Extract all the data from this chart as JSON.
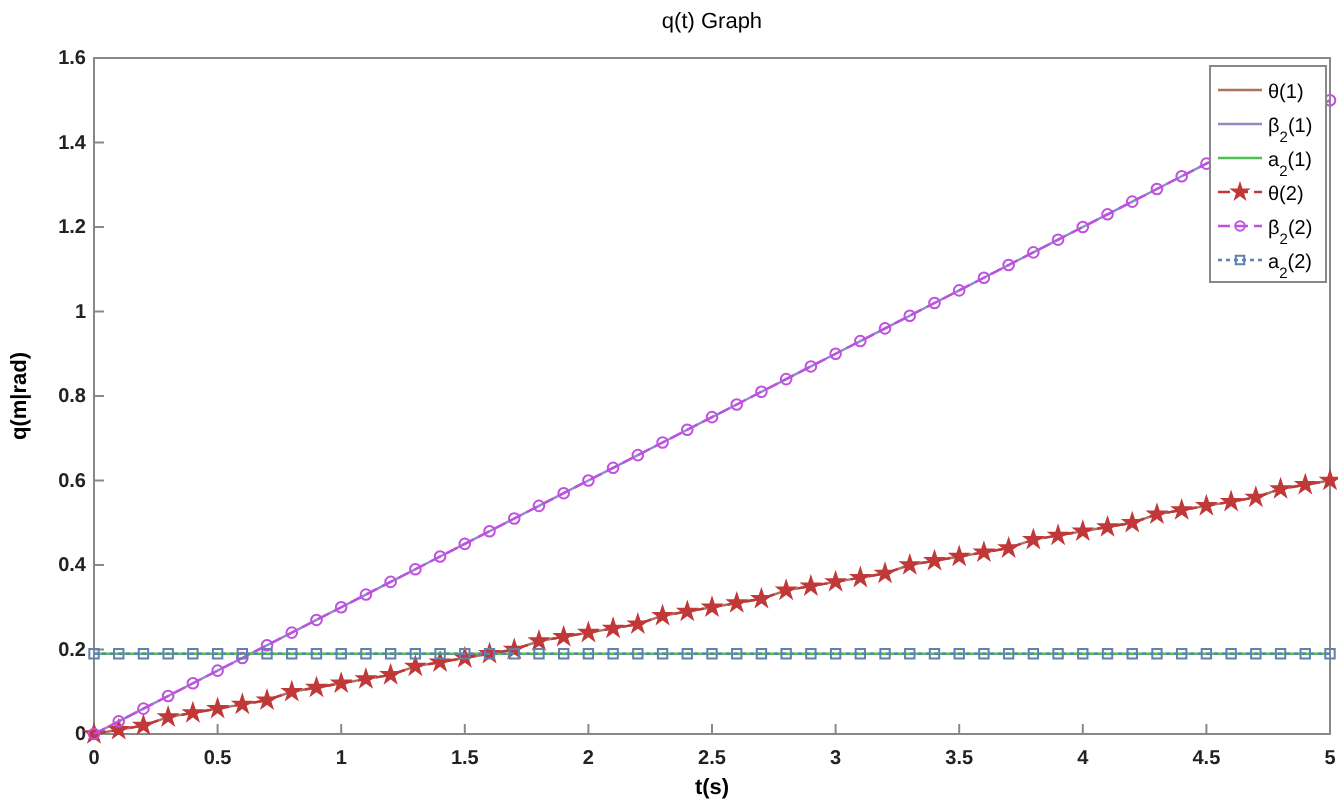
{
  "chart_data": {
    "type": "line",
    "title": "q(t) Graph",
    "xlabel": "t(s)",
    "ylabel": "q(m|rad)",
    "x": [
      0,
      0.1,
      0.2,
      0.3,
      0.4,
      0.5,
      0.6,
      0.7,
      0.8,
      0.9,
      1,
      1.1,
      1.2,
      1.3,
      1.4,
      1.5,
      1.6,
      1.7,
      1.8,
      1.9,
      2,
      2.1,
      2.2,
      2.3,
      2.4,
      2.5,
      2.6,
      2.7,
      2.8,
      2.9,
      3,
      3.1,
      3.2,
      3.3,
      3.4,
      3.5,
      3.6,
      3.7,
      3.8,
      3.9,
      4,
      4.1,
      4.2,
      4.3,
      4.4,
      4.5,
      4.6,
      4.7,
      4.8,
      4.9,
      5
    ],
    "xlim": [
      0,
      5
    ],
    "xticks": [
      0,
      0.5,
      1,
      1.5,
      2,
      2.5,
      3,
      3.5,
      4,
      4.5,
      5
    ],
    "ylim": [
      0,
      1.6
    ],
    "yticks": [
      0,
      0.2,
      0.4,
      0.6,
      0.8,
      1,
      1.2,
      1.4,
      1.6
    ],
    "grid": false,
    "legend": "top right",
    "series": [
      {
        "name": "θ(1)",
        "color": "#b07060",
        "line_style": "solid",
        "marker": "none",
        "values": [
          0,
          0.01,
          0.02,
          0.04,
          0.05,
          0.06,
          0.07,
          0.08,
          0.1,
          0.11,
          0.12,
          0.13,
          0.14,
          0.16,
          0.17,
          0.18,
          0.19,
          0.2,
          0.22,
          0.23,
          0.24,
          0.25,
          0.26,
          0.28,
          0.29,
          0.3,
          0.31,
          0.32,
          0.34,
          0.35,
          0.36,
          0.37,
          0.38,
          0.4,
          0.41,
          0.42,
          0.43,
          0.44,
          0.46,
          0.47,
          0.48,
          0.49,
          0.5,
          0.52,
          0.53,
          0.54,
          0.55,
          0.56,
          0.58,
          0.59,
          0.6
        ]
      },
      {
        "name": "β$_{2}$(1)",
        "color": "#8c8cc8",
        "line_style": "solid",
        "marker": "none",
        "values": [
          0,
          0.03,
          0.06,
          0.09,
          0.12,
          0.15,
          0.18,
          0.21,
          0.24,
          0.27,
          0.3,
          0.33,
          0.36,
          0.39,
          0.42,
          0.45,
          0.48,
          0.51,
          0.54,
          0.57,
          0.6,
          0.63,
          0.66,
          0.69,
          0.72,
          0.75,
          0.78,
          0.81,
          0.84,
          0.87,
          0.9,
          0.93,
          0.96,
          0.99,
          1.02,
          1.05,
          1.08,
          1.11,
          1.14,
          1.17,
          1.2,
          1.23,
          1.26,
          1.29,
          1.32,
          1.35,
          null,
          null,
          null,
          null,
          1.5
        ]
      },
      {
        "name": "a$_{2}$(1)",
        "color": "#50c050",
        "line_style": "solid",
        "marker": "none",
        "values": [
          0.19,
          0.19,
          0.19,
          0.19,
          0.19,
          0.19,
          0.19,
          0.19,
          0.19,
          0.19,
          0.19,
          0.19,
          0.19,
          0.19,
          0.19,
          0.19,
          0.19,
          0.19,
          0.19,
          0.19,
          0.19,
          0.19,
          0.19,
          0.19,
          0.19,
          0.19,
          0.19,
          0.19,
          0.19,
          0.19,
          0.19,
          0.19,
          0.19,
          0.19,
          0.19,
          0.19,
          0.19,
          0.19,
          0.19,
          0.19,
          0.19,
          0.19,
          0.19,
          0.19,
          0.19,
          0.19,
          0.19,
          0.19,
          0.19,
          0.19,
          0.19
        ]
      },
      {
        "name": "θ(2)",
        "color": "#c03838",
        "line_style": "dashed",
        "marker": "star",
        "values": [
          0,
          0.01,
          0.02,
          0.04,
          0.05,
          0.06,
          0.07,
          0.08,
          0.1,
          0.11,
          0.12,
          0.13,
          0.14,
          0.16,
          0.17,
          0.18,
          0.19,
          0.2,
          0.22,
          0.23,
          0.24,
          0.25,
          0.26,
          0.28,
          0.29,
          0.3,
          0.31,
          0.32,
          0.34,
          0.35,
          0.36,
          0.37,
          0.38,
          0.4,
          0.41,
          0.42,
          0.43,
          0.44,
          0.46,
          0.47,
          0.48,
          0.49,
          0.5,
          0.52,
          0.53,
          0.54,
          0.55,
          0.56,
          0.58,
          0.59,
          0.6
        ]
      },
      {
        "name": "β$_{2}$(2)",
        "color": "#c050e0",
        "line_style": "dashed",
        "marker": "circle",
        "values": [
          0,
          0.03,
          0.06,
          0.09,
          0.12,
          0.15,
          0.18,
          0.21,
          0.24,
          0.27,
          0.3,
          0.33,
          0.36,
          0.39,
          0.42,
          0.45,
          0.48,
          0.51,
          0.54,
          0.57,
          0.6,
          0.63,
          0.66,
          0.69,
          0.72,
          0.75,
          0.78,
          0.81,
          0.84,
          0.87,
          0.9,
          0.93,
          0.96,
          0.99,
          1.02,
          1.05,
          1.08,
          1.11,
          1.14,
          1.17,
          1.2,
          1.23,
          1.26,
          1.29,
          1.32,
          1.35,
          null,
          null,
          null,
          null,
          1.5
        ]
      },
      {
        "name": "a$_{2}$(2)",
        "color": "#6080b0",
        "line_style": "dotted",
        "marker": "square",
        "values": [
          0.19,
          0.19,
          0.19,
          0.19,
          0.19,
          0.19,
          0.19,
          0.19,
          0.19,
          0.19,
          0.19,
          0.19,
          0.19,
          0.19,
          0.19,
          0.19,
          0.19,
          0.19,
          0.19,
          0.19,
          0.19,
          0.19,
          0.19,
          0.19,
          0.19,
          0.19,
          0.19,
          0.19,
          0.19,
          0.19,
          0.19,
          0.19,
          0.19,
          0.19,
          0.19,
          0.19,
          0.19,
          0.19,
          0.19,
          0.19,
          0.19,
          0.19,
          0.19,
          0.19,
          0.19,
          0.19,
          0.19,
          0.19,
          0.19,
          0.19,
          0.19
        ]
      }
    ]
  }
}
